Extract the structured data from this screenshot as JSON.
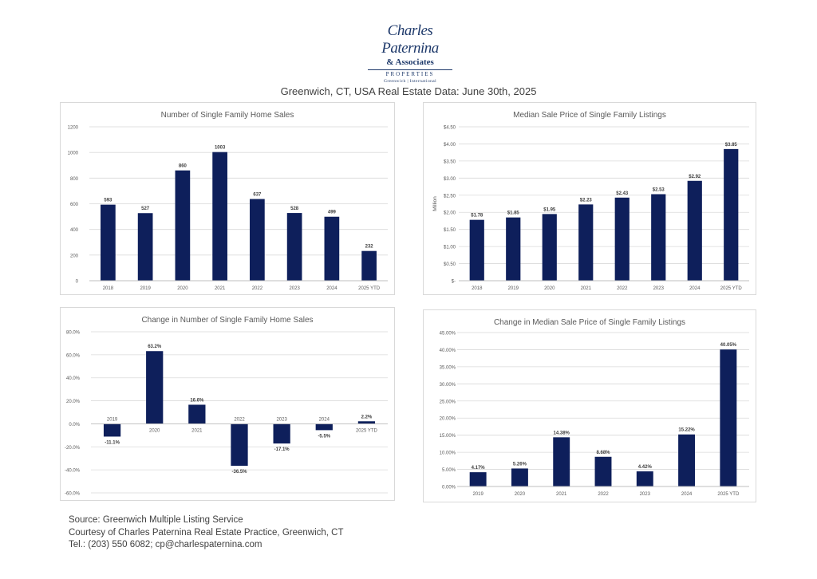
{
  "logo": {
    "name": "Charles Paternina",
    "associates": "& Associates",
    "properties": "PROPERTIES",
    "subline": "Greenwich | International",
    "color": "#1f3a6b"
  },
  "page_title": "Greenwich, CT, USA Real Estate Data: June 30th, 2025",
  "footer": {
    "line1": "Source: Greenwich Multiple Listing Service",
    "line2": "Courtesy of Charles Paternina Real Estate Practice, Greenwich, CT",
    "line3": "Tel.: (203) 550 6082; cp@charlespaternina.com"
  },
  "colors": {
    "bar": "#0e1f5b",
    "grid": "#d9d9d9",
    "text": "#595959"
  },
  "chart_data": [
    {
      "id": "sales",
      "type": "bar",
      "title": "Number of Single Family Home Sales",
      "categories": [
        "2018",
        "2019",
        "2020",
        "2021",
        "2022",
        "2023",
        "2024",
        "2025 YTD"
      ],
      "values": [
        593,
        527,
        860,
        1003,
        637,
        528,
        499,
        232
      ],
      "labels": [
        "593",
        "527",
        "860",
        "1003",
        "637",
        "528",
        "499",
        "232"
      ],
      "ylim": [
        0,
        1200
      ],
      "yticks": [
        0,
        200,
        400,
        600,
        800,
        1000,
        1200
      ],
      "ytick_labels": [
        "0",
        "200",
        "400",
        "600",
        "800",
        "1000",
        "1200"
      ],
      "ylabel": "",
      "grid": true
    },
    {
      "id": "price",
      "type": "bar",
      "title": "Median Sale Price of Single Family Listings",
      "categories": [
        "2018",
        "2019",
        "2020",
        "2021",
        "2022",
        "2023",
        "2024",
        "2025 YTD"
      ],
      "values": [
        1.78,
        1.85,
        1.95,
        2.23,
        2.43,
        2.53,
        2.92,
        3.85
      ],
      "labels": [
        "$1.78",
        "$1.85",
        "$1.95",
        "$2.23",
        "$2.43",
        "$2.53",
        "$2.92",
        "$3.85"
      ],
      "ylim": [
        0,
        4.5
      ],
      "yticks": [
        0,
        0.5,
        1,
        1.5,
        2,
        2.5,
        3,
        3.5,
        4,
        4.5
      ],
      "ytick_labels": [
        "$-",
        "$0.50",
        "$1.00",
        "$1.50",
        "$2.00",
        "$2.50",
        "$3.00",
        "$3.50",
        "$4.00",
        "$4.50"
      ],
      "ylabel": "Million",
      "grid": true
    },
    {
      "id": "sales_change",
      "type": "bar",
      "title": "Change in Number of Single Family Home Sales",
      "categories": [
        "2019",
        "2020",
        "2021",
        "2022",
        "2023",
        "2024",
        "2025 YTD"
      ],
      "values": [
        -11.1,
        63.2,
        16.6,
        -36.5,
        -17.1,
        -5.5,
        2.2
      ],
      "labels": [
        "-11.1%",
        "63.2%",
        "16.6%",
        "-36.5%",
        "-17.1%",
        "-5.5%",
        "2.2%"
      ],
      "ylim": [
        -60,
        80
      ],
      "yticks": [
        -60,
        -40,
        -20,
        0,
        20,
        40,
        60,
        80
      ],
      "ytick_labels": [
        "-60.0%",
        "-40.0%",
        "-20.0%",
        "0.0%",
        "20.0%",
        "40.0%",
        "60.0%",
        "80.0%"
      ],
      "ylabel": "",
      "grid": true
    },
    {
      "id": "price_change",
      "type": "bar",
      "title": "Change in Median Sale Price of Single Family Listings",
      "categories": [
        "2019",
        "2020",
        "2021",
        "2022",
        "2023",
        "2024",
        "2025 YTD"
      ],
      "values": [
        4.17,
        5.26,
        14.38,
        8.68,
        4.42,
        15.22,
        40.05
      ],
      "labels": [
        "4.17%",
        "5.26%",
        "14.38%",
        "8.68%",
        "4.42%",
        "15.22%",
        "40.05%"
      ],
      "ylim": [
        0,
        45
      ],
      "yticks": [
        0,
        5,
        10,
        15,
        20,
        25,
        30,
        35,
        40,
        45
      ],
      "ytick_labels": [
        "0.00%",
        "5.00%",
        "10.00%",
        "15.00%",
        "20.00%",
        "25.00%",
        "30.00%",
        "35.00%",
        "40.00%",
        "45.00%"
      ],
      "ylabel": "",
      "grid": true
    }
  ]
}
